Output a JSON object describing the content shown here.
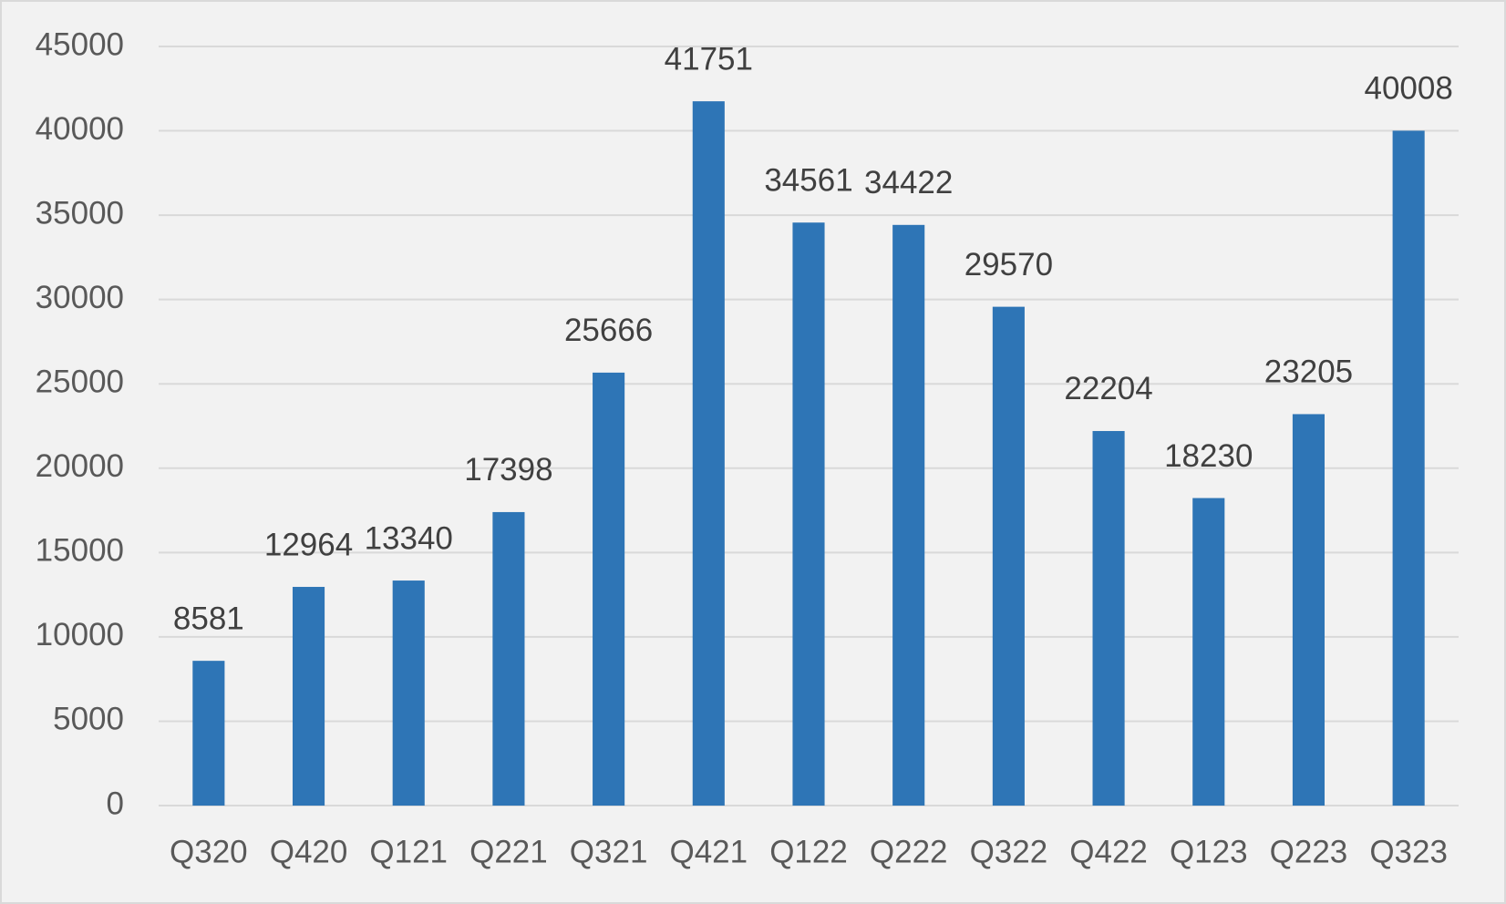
{
  "chart_data": {
    "type": "bar",
    "categories": [
      "Q320",
      "Q420",
      "Q121",
      "Q221",
      "Q321",
      "Q421",
      "Q122",
      "Q222",
      "Q322",
      "Q422",
      "Q123",
      "Q223",
      "Q323"
    ],
    "values": [
      8581,
      12964,
      13340,
      17398,
      25666,
      41751,
      34561,
      34422,
      29570,
      22204,
      18230,
      23205,
      40008
    ],
    "color": "#2e75b6",
    "ylim": [
      0,
      45000
    ],
    "yticks": [
      0,
      5000,
      10000,
      15000,
      20000,
      25000,
      30000,
      35000,
      40000,
      45000
    ],
    "grid": true
  }
}
